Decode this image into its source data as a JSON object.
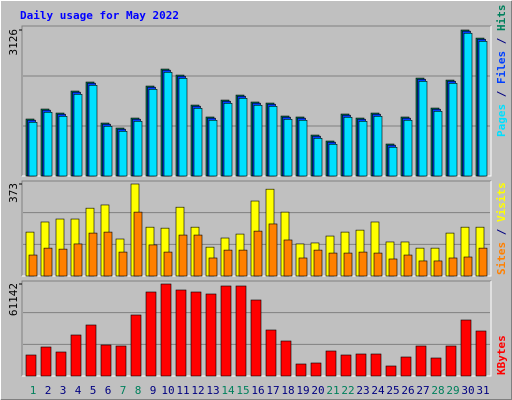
{
  "chart_data": [
    {
      "type": "bar",
      "title": "Daily usage for May 2022",
      "ylim": [
        0,
        3126
      ],
      "yticks": [
        3126
      ],
      "grid": true,
      "separator": " / ",
      "series": [
        {
          "name": "Hits",
          "color": "#00805c",
          "values": [
            1220,
            1434,
            1348,
            1819,
            2012,
            1134,
            1027,
            1241,
            1926,
            2290,
            2161,
            1519,
            1263,
            1626,
            1733,
            1584,
            1562,
            1284,
            1263,
            877,
            749,
            1327,
            1241,
            1348,
            685,
            1263,
            2097,
            1455,
            2054,
            3126,
            2953
          ]
        },
        {
          "name": "Files",
          "color": "#0040ff",
          "values": [
            1195,
            1409,
            1323,
            1794,
            1987,
            1109,
            1002,
            1216,
            1901,
            2265,
            2136,
            1494,
            1238,
            1601,
            1708,
            1559,
            1537,
            1259,
            1238,
            852,
            724,
            1302,
            1216,
            1323,
            660,
            1238,
            2072,
            1430,
            2029,
            3101,
            2928
          ]
        },
        {
          "name": "Pages",
          "color": "#00e0ff",
          "values": [
            1150,
            1364,
            1278,
            1749,
            1942,
            1064,
            957,
            1171,
            1856,
            2220,
            2091,
            1449,
            1193,
            1556,
            1663,
            1514,
            1492,
            1214,
            1193,
            807,
            679,
            1257,
            1171,
            1278,
            615,
            1193,
            2027,
            1385,
            1984,
            3056,
            2883
          ]
        }
      ]
    },
    {
      "type": "bar",
      "ylim": [
        0,
        373
      ],
      "yticks": [
        373
      ],
      "grid": true,
      "separator": " / ",
      "series": [
        {
          "name": "Visits",
          "color": "#ffff00",
          "values": [
            178,
            219,
            231,
            231,
            275,
            288,
            150,
            373,
            198,
            194,
            279,
            198,
            117,
            154,
            170,
            304,
            352,
            259,
            130,
            134,
            162,
            178,
            186,
            219,
            138,
            138,
            113,
            113,
            174,
            198,
            198
          ]
        },
        {
          "name": "Sites",
          "color": "#ff8000",
          "values": [
            85,
            113,
            109,
            130,
            174,
            178,
            97,
            259,
            126,
            97,
            166,
            166,
            73,
            105,
            105,
            182,
            211,
            146,
            73,
            105,
            93,
            93,
            97,
            93,
            69,
            85,
            61,
            61,
            73,
            77,
            113
          ]
        }
      ]
    },
    {
      "type": "bar",
      "ylim": [
        0,
        61142
      ],
      "yticks": [
        61142
      ],
      "grid": true,
      "separator": " / ",
      "categories": [
        "1",
        "2",
        "3",
        "4",
        "5",
        "6",
        "7",
        "8",
        "9",
        "10",
        "11",
        "12",
        "13",
        "14",
        "15",
        "16",
        "17",
        "18",
        "19",
        "20",
        "21",
        "22",
        "23",
        "24",
        "25",
        "26",
        "27",
        "28",
        "29",
        "30",
        "31"
      ],
      "label_color": "#000080",
      "weekend_color": "#00805c",
      "weekends": [
        0,
        6,
        7,
        13,
        14,
        20,
        21,
        27,
        28
      ],
      "series": [
        {
          "name": "KBytes",
          "color": "#ff0000",
          "values": [
            13957,
            19273,
            15950,
            27249,
            33895,
            20603,
            19938,
            40541,
            55826,
            61142,
            57156,
            55826,
            54497,
            59814,
            59814,
            50510,
            30572,
            23261,
            7975,
            8640,
            16615,
            13957,
            14621,
            14621,
            6646,
            12627,
            19938,
            11963,
            19938,
            37218,
            29907
          ]
        }
      ]
    }
  ]
}
